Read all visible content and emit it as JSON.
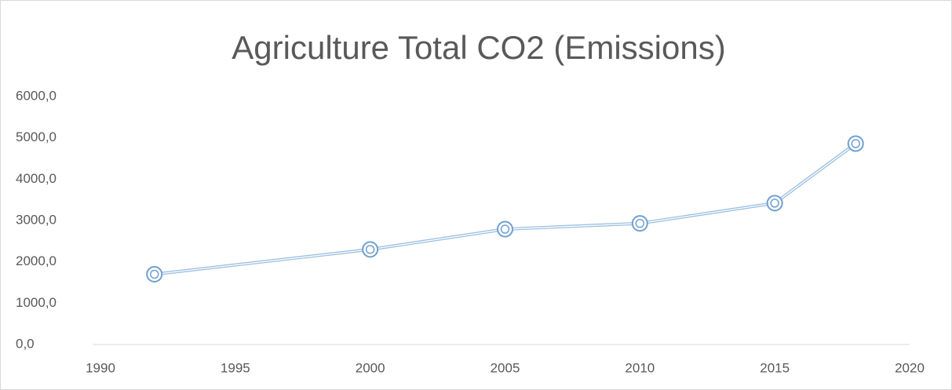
{
  "chart_data": {
    "type": "line",
    "title": "Agriculture Total CO2 (Emissions)",
    "x": [
      1992,
      2000,
      2005,
      2010,
      2015,
      2018
    ],
    "series": [
      {
        "name": "Total CO2",
        "color": "#9dc0e0",
        "marker_color": "#6f9fcf",
        "values": [
          1700,
          2300,
          2790,
          2930,
          3420,
          4860
        ]
      }
    ],
    "xlim": [
      1990,
      2020
    ],
    "xticks": [
      1990,
      1995,
      2000,
      2005,
      2010,
      2015,
      2020
    ],
    "ylim": [
      0,
      6000
    ],
    "yticks": [
      {
        "value": 0,
        "label": "0,0"
      },
      {
        "value": 1000,
        "label": "1000,0"
      },
      {
        "value": 2000,
        "label": "2000,0"
      },
      {
        "value": 3000,
        "label": "3000,0"
      },
      {
        "value": 4000,
        "label": "4000,0"
      },
      {
        "value": 5000,
        "label": "5000,0"
      },
      {
        "value": 6000,
        "label": "6000,0"
      }
    ],
    "grid": false
  }
}
